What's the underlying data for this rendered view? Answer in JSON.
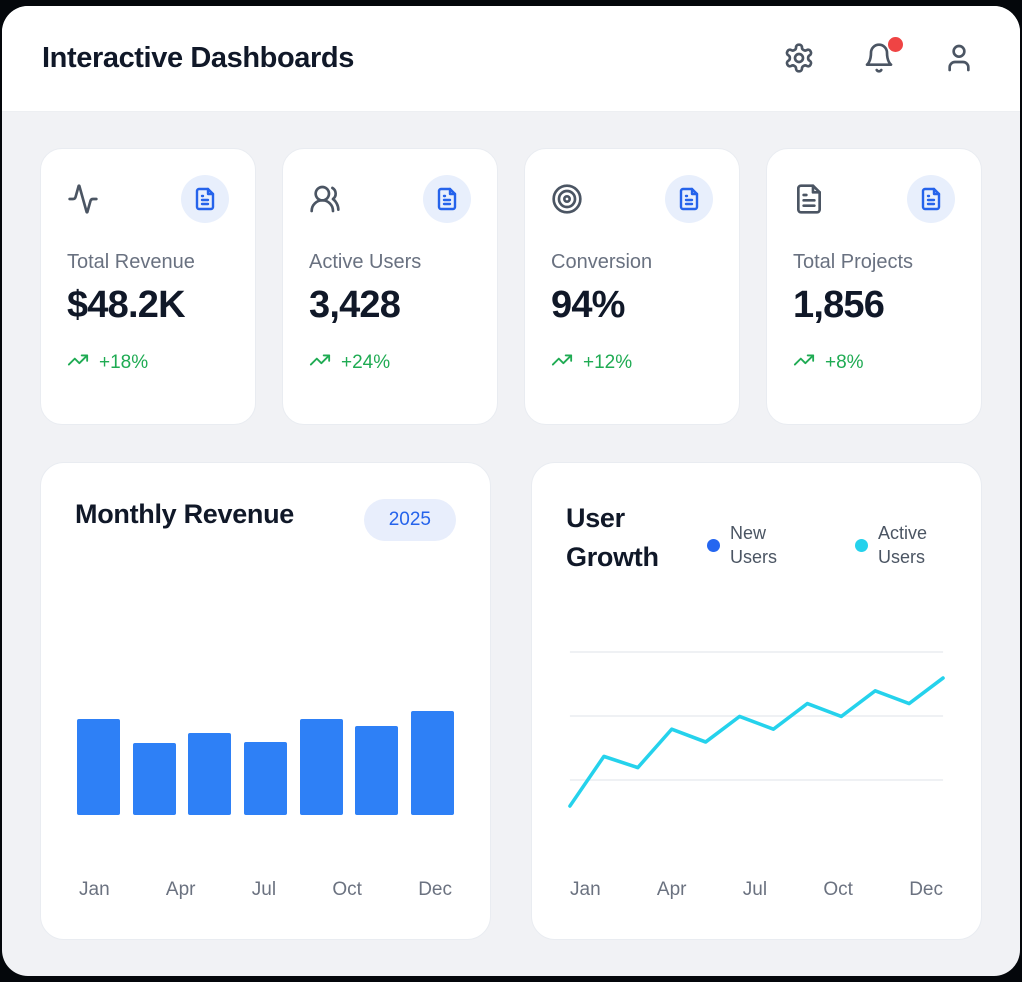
{
  "header": {
    "title": "Interactive Dashboards",
    "icons": {
      "settings": "gear-icon",
      "notifications": "bell-icon",
      "notification_dot": true,
      "profile": "user-icon"
    }
  },
  "stats": [
    {
      "icon": "activity-icon",
      "corner_icon": "document-icon",
      "label": "Total Revenue",
      "value": "$48.2K",
      "change": "+18%"
    },
    {
      "icon": "users-icon",
      "corner_icon": "document-icon",
      "label": "Active Users",
      "value": "3,428",
      "change": "+24%"
    },
    {
      "icon": "target-icon",
      "corner_icon": "document-icon",
      "label": "Conversion",
      "value": "94%",
      "change": "+12%"
    },
    {
      "icon": "file-text-icon",
      "corner_icon": "document-icon",
      "label": "Total Projects",
      "value": "1,856",
      "change": "+8%"
    }
  ],
  "chart_data": [
    {
      "type": "bar",
      "title": "Monthly Revenue",
      "badge": "2025",
      "x_ticks": [
        "Jan",
        "Apr",
        "Jul",
        "Oct",
        "Dec"
      ],
      "n_bars": 7,
      "values_pct_of_max": [
        92,
        69,
        79,
        70,
        92,
        86,
        100
      ],
      "bar_color": "#2e80f6",
      "y_axis_shown": false,
      "grid": false
    },
    {
      "type": "line",
      "title": "User Growth",
      "x_ticks": [
        "Jan",
        "Apr",
        "Jul",
        "Oct",
        "Dec"
      ],
      "legend": [
        {
          "label": "New Users",
          "color": "#2566f0"
        },
        {
          "label": "Active Users",
          "color": "#25d2ec"
        }
      ],
      "series": [
        {
          "name": "Active Users",
          "color": "#25d2ec",
          "values": [
            0,
            31,
            24,
            48,
            40,
            56,
            48,
            64,
            56,
            72,
            64,
            80
          ]
        }
      ],
      "ylim": [
        0,
        100
      ],
      "y_axis_shown": false,
      "gridlines": 3,
      "legend_position": "top-right"
    }
  ],
  "colors": {
    "accent_blue": "#2563eb",
    "bar_blue": "#2e80f6",
    "line_cyan": "#25d2ec",
    "legend_blue": "#2566f0",
    "positive_green": "#1fab53",
    "alert_red": "#ef4444",
    "page_bg": "#f1f2f5",
    "title_navy": "#101828"
  }
}
